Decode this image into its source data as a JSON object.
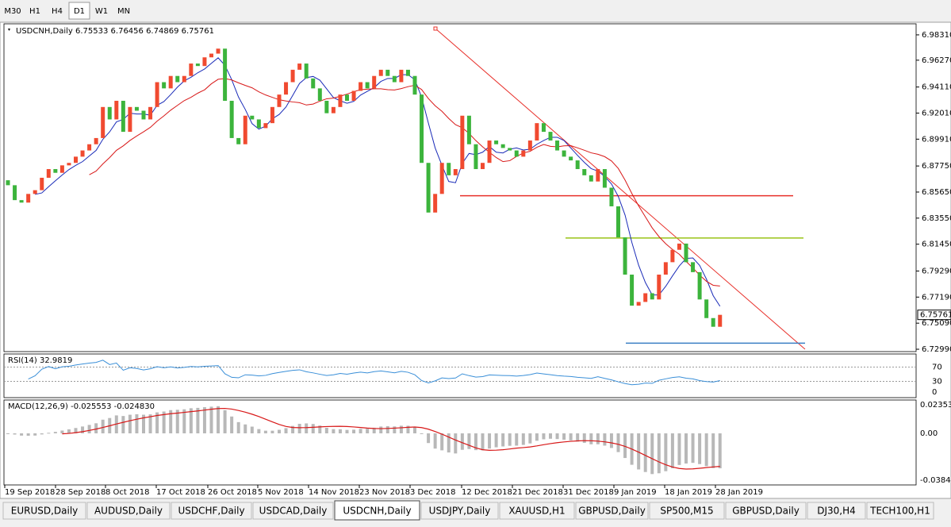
{
  "toolbar": {
    "timeframes": [
      "M30",
      "H1",
      "H4",
      "D1",
      "W1",
      "MN"
    ],
    "active": 3
  },
  "chart_data": {
    "type": "candlestick",
    "title": "USDCNH,Daily 6.75533 6.76456 6.74869 6.75761",
    "first_open": 6.866,
    "close": [
      6.862,
      6.85,
      6.848,
      6.855,
      6.858,
      6.868,
      6.875,
      6.872,
      6.878,
      6.88,
      6.885,
      6.89,
      6.895,
      6.9,
      6.925,
      6.915,
      6.93,
      6.905,
      6.925,
      6.922,
      6.915,
      6.925,
      6.945,
      6.94,
      6.95,
      6.945,
      6.95,
      6.96,
      6.958,
      6.965,
      6.968,
      6.972,
      6.93,
      6.9,
      6.895,
      6.918,
      6.915,
      6.908,
      6.912,
      6.925,
      6.935,
      6.945,
      6.955,
      6.96,
      6.948,
      6.94,
      6.93,
      6.92,
      6.925,
      6.935,
      6.93,
      6.938,
      6.945,
      6.94,
      6.95,
      6.955,
      6.95,
      6.945,
      6.955,
      6.95,
      6.935,
      6.88,
      6.84,
      6.855,
      6.88,
      6.87,
      6.875,
      6.918,
      6.895,
      6.875,
      6.88,
      6.898,
      6.895,
      6.892,
      6.89,
      6.885,
      6.89,
      6.898,
      6.912,
      6.905,
      6.898,
      6.89,
      6.885,
      6.882,
      6.875,
      6.87,
      6.865,
      6.875,
      6.86,
      6.845,
      6.82,
      6.79,
      6.765,
      6.768,
      6.775,
      6.77,
      6.79,
      6.8,
      6.81,
      6.815,
      6.8,
      6.792,
      6.77,
      6.755,
      6.748,
      6.75761
    ],
    "dates": [
      "19 Sep 2018",
      "28 Sep 2018",
      "8 Oct 2018",
      "17 Oct 2018",
      "26 Oct 2018",
      "5 Nov 2018",
      "14 Nov 2018",
      "23 Nov 2018",
      "3 Dec 2018",
      "12 Dec 2018",
      "21 Dec 2018",
      "31 Dec 2018",
      "9 Jan 2019",
      "18 Jan 2019",
      "28 Jan 2019"
    ],
    "ylim": [
      6.728,
      6.992
    ],
    "yticks": [
      {
        "value": 6.9831,
        "label": "6.98310"
      },
      {
        "value": 6.9627,
        "label": "6.96270"
      },
      {
        "value": 6.9411,
        "label": "6.94110"
      },
      {
        "value": 6.9201,
        "label": "6.92010"
      },
      {
        "value": 6.8991,
        "label": "6.89910"
      },
      {
        "value": 6.8775,
        "label": "6.87750"
      },
      {
        "value": 6.8565,
        "label": "6.85650"
      },
      {
        "value": 6.8355,
        "label": "6.83550"
      },
      {
        "value": 6.8145,
        "label": "6.81450"
      },
      {
        "value": 6.7929,
        "label": "6.79290"
      },
      {
        "value": 6.7719,
        "label": "6.77190"
      },
      {
        "value": 6.7509,
        "label": "6.75090"
      },
      {
        "value": 6.7299,
        "label": "6.72990"
      }
    ],
    "current_price": 6.75761,
    "levels": [
      {
        "value": 6.8535,
        "color": "#e8302a"
      },
      {
        "value": 6.8195,
        "color": "#9ac317"
      },
      {
        "value": 6.7348,
        "color": "#3a7fc4"
      }
    ],
    "up_color": "#f04a30",
    "down_color": "#3cb43c"
  },
  "rsi": {
    "title": "RSI(14) 32.9819",
    "ylim": [
      0,
      100
    ],
    "yticks": [
      70,
      30,
      0
    ]
  },
  "macd": {
    "title": "MACD(12,26,9) -0.025553 -0.024830",
    "ylim": [
      -0.0424,
      0.0274
    ],
    "yticks": [
      0.023534,
      {
        "value": 0,
        "label": "0.00"
      },
      -0.038466
    ]
  },
  "tabs": [
    "EURUSD,Daily",
    "AUDUSD,Daily",
    "USDCHF,Daily",
    "USDCAD,Daily",
    "USDCNH,Daily",
    "USDJPY,Daily",
    "XAUUSD,H1",
    "GBPUSD,Daily",
    "SP500,M15",
    "GBPUSD,Daily",
    "DJ30,H4",
    "TECH100,H1"
  ],
  "active_tab": 4
}
